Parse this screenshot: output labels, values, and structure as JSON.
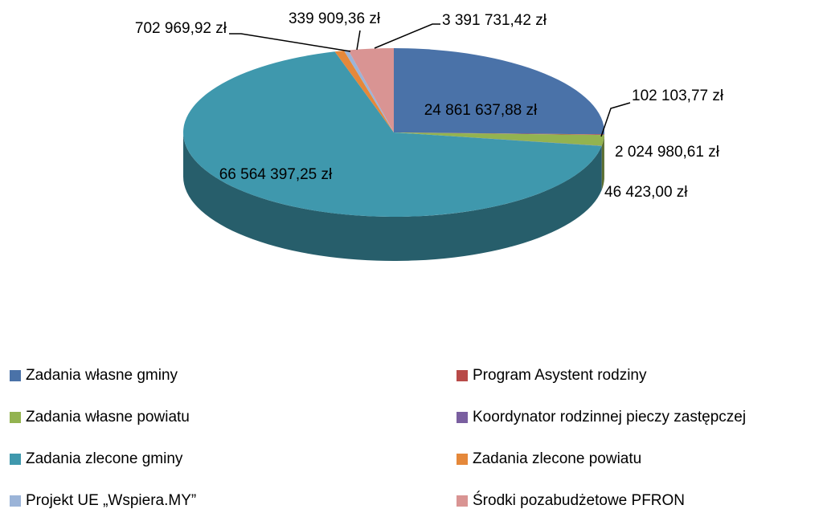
{
  "chart_data": {
    "type": "pie",
    "categories": [
      "Zadania własne gminy",
      "Program Asystent rodziny",
      "Zadania własne powiatu",
      "Koordynator rodzinnej pieczy zastępczej",
      "Zadania zlecone gminy",
      "Zadania zlecone powiatu",
      "Projekt UE „Wspiera.MY”",
      "Środki pozabudżetowe PFRON"
    ],
    "values": [
      24861637.88,
      102103.77,
      2024980.61,
      46423.0,
      66564397.25,
      702969.92,
      339909.36,
      3391731.42
    ],
    "value_labels": [
      "24 861 637,88 zł",
      "102 103,77 zł",
      "2 024 980,61 zł",
      "46 423,00 zł",
      "66 564 397,25 zł",
      "702 969,92 zł",
      "339 909,36 zł",
      "3 391 731,42 zł"
    ],
    "colors": [
      "#4a72a8",
      "#b84a48",
      "#93b350",
      "#7a5fa0",
      "#3f98ad",
      "#e5883a",
      "#9bb4d8",
      "#d99493"
    ],
    "legend": "bottom"
  }
}
